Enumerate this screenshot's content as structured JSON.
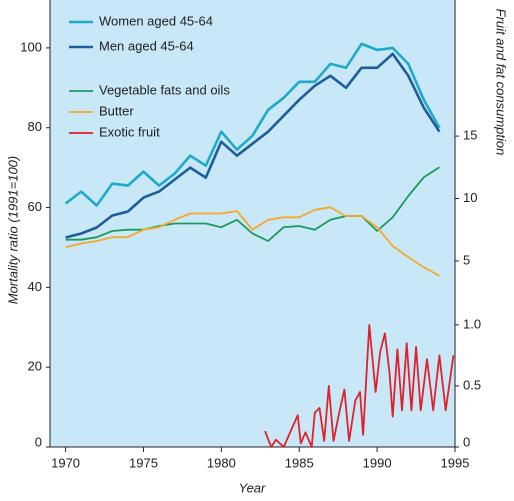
{
  "chart_data": {
    "type": "line",
    "x_label": "Year",
    "y_label": "Mortality ratio (1991=100)",
    "y2_label": "Fruit and fat consumption",
    "xlim": [
      1969,
      1995
    ],
    "xticks": [
      1970,
      1975,
      1980,
      1985,
      1990,
      1995
    ],
    "ylim": [
      0,
      112
    ],
    "yticks": [
      0,
      20,
      40,
      60,
      80,
      100
    ],
    "y2lim": [
      -9.9,
      25.9
    ],
    "y2ticks": [
      5,
      10,
      15
    ],
    "y3lim": [
      0,
      3.66
    ],
    "y3ticks": [
      0,
      0.5,
      {
        "value": 1,
        "label": "1.0"
      }
    ],
    "background": "#c8e8f8",
    "x": [
      1970,
      1971,
      1972,
      1973,
      1974,
      1975,
      1976,
      1977,
      1978,
      1979,
      1980,
      1981,
      1982,
      1983,
      1984,
      1985,
      1986,
      1987,
      1988,
      1989,
      1990,
      1991,
      1992,
      1993,
      1994
    ],
    "series": [
      {
        "name": "Women aged 45-64",
        "color": "#1eaacb",
        "axis": "y",
        "values": [
          61,
          64,
          60.5,
          66,
          65.5,
          69,
          65.5,
          68.5,
          73,
          70.5,
          79,
          74.5,
          78,
          84.5,
          87.5,
          91.5,
          91.5,
          96,
          95,
          101,
          99.5,
          100,
          96,
          87,
          80
        ]
      },
      {
        "name": "Men aged 45-64",
        "color": "#1f5c9c",
        "axis": "y",
        "values": [
          52.5,
          53.5,
          55,
          58,
          59,
          62.5,
          64,
          67,
          70,
          67.5,
          76.5,
          73,
          76,
          79,
          83,
          87,
          90.5,
          93,
          90,
          95,
          95,
          98.5,
          93,
          85,
          79
        ]
      },
      {
        "name": "Vegetable fats and oils",
        "color": "#1a9b5c",
        "axis": "y2",
        "values": [
          6.7,
          6.7,
          6.9,
          7.4,
          7.5,
          7.5,
          7.8,
          8.0,
          8.0,
          8.0,
          7.7,
          8.3,
          7.2,
          6.6,
          7.7,
          7.8,
          7.5,
          8.3,
          8.6,
          8.6,
          7.4,
          8.5,
          10.2,
          11.7,
          12.5
        ]
      },
      {
        "name": "Butter",
        "color": "#f5a82a",
        "axis": "y2",
        "values": [
          6.1,
          6.4,
          6.6,
          6.9,
          6.9,
          7.5,
          7.7,
          8.3,
          8.8,
          8.8,
          8.8,
          9.0,
          7.5,
          8.3,
          8.5,
          8.5,
          9.1,
          9.3,
          8.6,
          8.6,
          7.7,
          6.2,
          5.3,
          4.5,
          3.8
        ]
      },
      {
        "name": "Exotic fruit",
        "color": "#e0212b",
        "axis": "y3",
        "x": [
          1982.8,
          1983.2,
          1983.5,
          1984.0,
          1984.9,
          1985.1,
          1985.4,
          1985.6,
          1985.8,
          1986.0,
          1986.3,
          1986.6,
          1986.9,
          1987.2,
          1987.6,
          1987.9,
          1988.2,
          1988.6,
          1988.9,
          1989.1,
          1989.5,
          1989.9,
          1990.2,
          1990.5,
          1990.8,
          1991.0,
          1991.3,
          1991.6,
          1991.9,
          1992.2,
          1992.5,
          1992.8,
          1993.2,
          1993.6,
          1994.0,
          1994.4,
          1994.9
        ],
        "values": [
          0.13,
          0.0,
          0.06,
          0.0,
          0.26,
          0.03,
          0.12,
          0.06,
          0.0,
          0.28,
          0.32,
          0.05,
          0.5,
          0.05,
          0.3,
          0.47,
          0.05,
          0.38,
          0.45,
          0.1,
          1.0,
          0.45,
          0.78,
          0.93,
          0.6,
          0.25,
          0.8,
          0.3,
          0.85,
          0.3,
          0.82,
          0.3,
          0.72,
          0.3,
          0.75,
          0.3,
          0.75
        ]
      }
    ]
  }
}
